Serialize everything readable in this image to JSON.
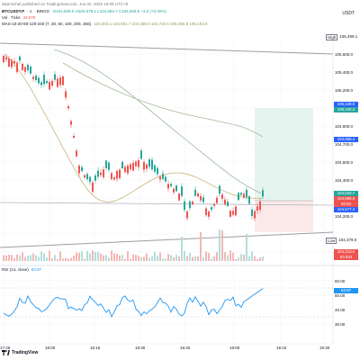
{
  "header": {
    "publisher_line": "lakemichel published on TradingView.com, Jun 02, 2025 19:09 UTC+8",
    "symbol": "BTCUSDT.P",
    "interval": "1",
    "exchange": "BINGX",
    "ohlc": "O104,609.0 H104,678.1 L104,584.7 C104,608.6 +3.0 (+0.00%)",
    "volume_label": "Vol · Ticks",
    "volume_value": "33.578",
    "ma_label": "MAS-10-20-60-120-240 (7, 20, 50, 100, 200, 366)",
    "ma_values": "104,603.1  104,601.7  104,488.0  104,722.5  105,065.8  105,153.6",
    "currency": "USDT"
  },
  "price_axis": {
    "ticks": [
      "105,600.0",
      "105,400.0",
      "105,200.0",
      "105,000.0",
      "104,800.0",
      "104,700.0",
      "104,500.0",
      "104,400.0",
      "104,300.0",
      "104,200.0"
    ],
    "high_label": "High",
    "high_value": "105,499.1",
    "low_label": "Low",
    "low_value": "104,379.0"
  },
  "price_tags": [
    {
      "value": "105,128.0",
      "color": "#2962ff"
    },
    {
      "value": "105,100.2",
      "color": "#26a69a"
    },
    {
      "value": "104,958.4",
      "color": "#2962ff"
    },
    {
      "value": "104,633.7",
      "color": "#26a69a"
    },
    {
      "value": "104,608.6",
      "color": "#ef5350"
    },
    {
      "value": "00:50",
      "color": "#ef5350"
    },
    {
      "value": "104,577.4",
      "color": "#2962ff"
    },
    {
      "value": "104,313.0",
      "color": "#ef5350"
    },
    {
      "value": "93.834",
      "color": "#ef5350"
    }
  ],
  "rsi": {
    "label": "RSI (14, close)",
    "value": "53.97",
    "ticks": [
      "60.00",
      "50.00",
      "40.00",
      "30.00"
    ],
    "current_tag": "53.97"
  },
  "time_axis": {
    "ticks": [
      "17:45",
      "18:00",
      "18:15",
      "18:30",
      "18:45",
      "19:00",
      "19:15",
      "19:30"
    ]
  },
  "branding": {
    "logo_text": "TradingView"
  },
  "colors": {
    "up": "#26a69a",
    "down": "#ef5350",
    "ma_fast": "#c9b37a",
    "ma_slow": "#9bb59b",
    "rsi_line": "#2196f3",
    "trend_line": "#9e9e9e",
    "target_zone": "#e5f4ee",
    "stop_zone": "#fbe9e9"
  }
}
